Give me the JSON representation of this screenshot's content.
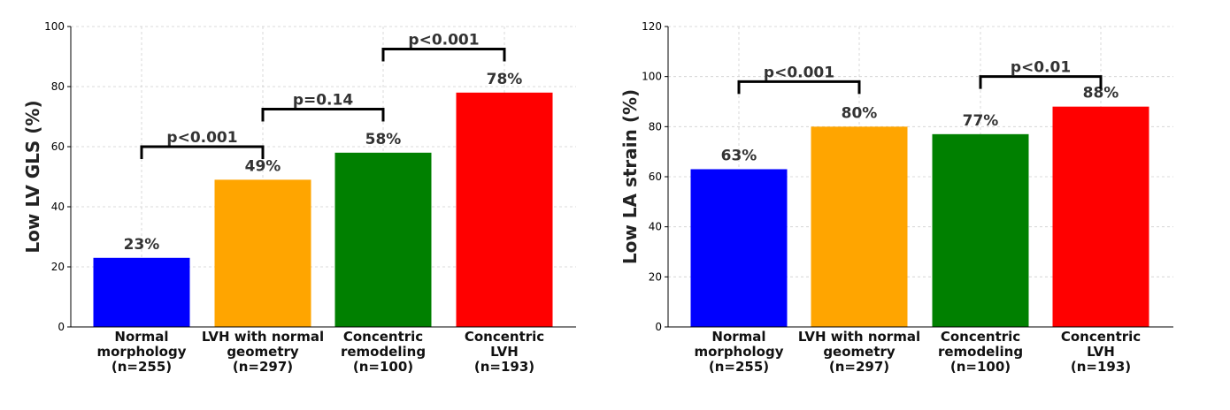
{
  "colors": [
    "#0000ff",
    "#ffa500",
    "#008000",
    "#ff0000"
  ],
  "chart_data": [
    {
      "type": "bar",
      "ylabel": "Low LV GLS (%)",
      "categories": [
        [
          "Normal",
          "morphology",
          "(n=255)"
        ],
        [
          "LVH with normal",
          "geometry",
          "(n=297)"
        ],
        [
          "Concentric",
          "remodeling",
          "(n=100)"
        ],
        [
          "Concentric",
          "LVH",
          "(n=193)"
        ]
      ],
      "values": [
        23,
        49,
        58,
        78
      ],
      "value_labels": [
        "23%",
        "49%",
        "58%",
        "78%"
      ],
      "ylim": [
        0,
        100
      ],
      "yticks": [
        0,
        20,
        40,
        60,
        80,
        100
      ],
      "grid": true,
      "comparisons": [
        {
          "from": 0,
          "to": 1,
          "label": "p<0.001",
          "level": 60
        },
        {
          "from": 1,
          "to": 2,
          "label": "p=0.14",
          "level": 72.5
        },
        {
          "from": 2,
          "to": 3,
          "label": "p<0.001",
          "level": 92.5
        }
      ]
    },
    {
      "type": "bar",
      "ylabel": "Low LA strain (%)",
      "categories": [
        [
          "Normal",
          "morphology",
          "(n=255)"
        ],
        [
          "LVH with normal",
          "geometry",
          "(n=297)"
        ],
        [
          "Concentric",
          "remodeling",
          "(n=100)"
        ],
        [
          "Concentric",
          "LVH",
          "(n=193)"
        ]
      ],
      "values": [
        63,
        80,
        77,
        88
      ],
      "value_labels": [
        "63%",
        "80%",
        "77%",
        "88%"
      ],
      "ylim": [
        0,
        120
      ],
      "yticks": [
        0,
        20,
        40,
        60,
        80,
        100,
        120
      ],
      "grid": true,
      "comparisons": [
        {
          "from": 0,
          "to": 1,
          "label": "p<0.001",
          "level": 98
        },
        {
          "from": 2,
          "to": 3,
          "label": "p<0.01",
          "level": 100
        }
      ]
    }
  ]
}
